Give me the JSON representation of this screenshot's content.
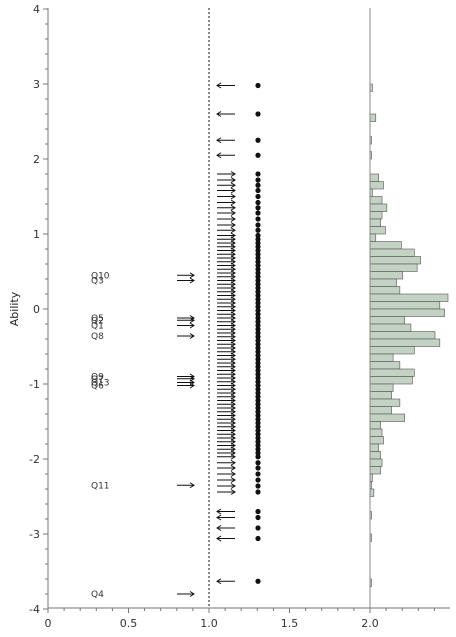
{
  "chart_data": {
    "type": "scatter",
    "title": "",
    "ylabel": "Ability",
    "xlabel": "",
    "ylim": [
      -4,
      4
    ],
    "xlim": [
      0,
      2.5
    ],
    "x_ticks": [
      "0",
      "0.5",
      "1.0",
      "1.5",
      "2.0"
    ],
    "y_ticks": [
      "4",
      "3",
      "2",
      "1",
      "0",
      "-1",
      "-2",
      "-3",
      "-4"
    ],
    "reference_lines": [
      {
        "x": 1.0,
        "style": "dotted"
      },
      {
        "x": 2.0,
        "style": "solid"
      }
    ],
    "items": [
      {
        "label": "Q10",
        "difficulty": 0.45
      },
      {
        "label": "Q3",
        "difficulty": 0.38
      },
      {
        "label": "Q5",
        "difficulty": -0.12
      },
      {
        "label": "Q2",
        "difficulty": -0.15
      },
      {
        "label": "Q1",
        "difficulty": -0.22
      },
      {
        "label": "Q8",
        "difficulty": -0.36
      },
      {
        "label": "Q9",
        "difficulty": -0.9
      },
      {
        "label": "Q7",
        "difficulty": -0.93
      },
      {
        "label": "Q13",
        "difficulty": -0.98
      },
      {
        "label": "Q6",
        "difficulty": -1.02
      },
      {
        "label": "Q11",
        "difficulty": -2.35
      },
      {
        "label": "Q4",
        "difficulty": -3.8
      }
    ],
    "person_abilities": [
      2.98,
      2.6,
      2.25,
      2.05,
      1.8,
      1.72,
      1.65,
      1.58,
      1.5,
      1.42,
      1.35,
      1.28,
      1.2,
      1.12,
      1.05,
      0.98,
      0.93,
      0.88,
      0.83,
      0.78,
      0.73,
      0.68,
      0.63,
      0.58,
      0.53,
      0.48,
      0.43,
      0.38,
      0.33,
      0.28,
      0.23,
      0.18,
      0.13,
      0.08,
      0.03,
      -0.02,
      -0.07,
      -0.12,
      -0.17,
      -0.22,
      -0.27,
      -0.32,
      -0.37,
      -0.42,
      -0.47,
      -0.52,
      -0.57,
      -0.62,
      -0.67,
      -0.72,
      -0.77,
      -0.82,
      -0.87,
      -0.92,
      -0.97,
      -1.02,
      -1.07,
      -1.12,
      -1.17,
      -1.22,
      -1.27,
      -1.32,
      -1.37,
      -1.42,
      -1.47,
      -1.52,
      -1.57,
      -1.62,
      -1.67,
      -1.72,
      -1.77,
      -1.82,
      -1.87,
      -1.92,
      -1.97,
      -2.05,
      -2.12,
      -2.2,
      -2.28,
      -2.36,
      -2.44,
      -2.7,
      -2.78,
      -2.92,
      -3.06,
      -3.63
    ],
    "ability_histogram": {
      "bin_width": 0.1,
      "bins": [
        {
          "y": 2.95,
          "count": 0.05
        },
        {
          "y": 2.55,
          "count": 0.12
        },
        {
          "y": 2.25,
          "count": 0.03
        },
        {
          "y": 2.05,
          "count": 0.02
        },
        {
          "y": 1.75,
          "count": 0.18
        },
        {
          "y": 1.65,
          "count": 0.28
        },
        {
          "y": 1.55,
          "count": 0.05
        },
        {
          "y": 1.45,
          "count": 0.25
        },
        {
          "y": 1.35,
          "count": 0.35
        },
        {
          "y": 1.25,
          "count": 0.25
        },
        {
          "y": 1.15,
          "count": 0.22
        },
        {
          "y": 1.05,
          "count": 0.32
        },
        {
          "y": 0.95,
          "count": 0.12
        },
        {
          "y": 0.85,
          "count": 0.65
        },
        {
          "y": 0.75,
          "count": 0.92
        },
        {
          "y": 0.65,
          "count": 1.05
        },
        {
          "y": 0.55,
          "count": 0.98
        },
        {
          "y": 0.45,
          "count": 0.68
        },
        {
          "y": 0.35,
          "count": 0.55
        },
        {
          "y": 0.25,
          "count": 0.62
        },
        {
          "y": 0.15,
          "count": 1.62
        },
        {
          "y": 0.05,
          "count": 1.45
        },
        {
          "y": -0.05,
          "count": 1.55
        },
        {
          "y": -0.15,
          "count": 0.72
        },
        {
          "y": -0.25,
          "count": 0.85
        },
        {
          "y": -0.35,
          "count": 1.35
        },
        {
          "y": -0.45,
          "count": 1.45
        },
        {
          "y": -0.55,
          "count": 0.92
        },
        {
          "y": -0.65,
          "count": 0.48
        },
        {
          "y": -0.75,
          "count": 0.62
        },
        {
          "y": -0.85,
          "count": 0.92
        },
        {
          "y": -0.95,
          "count": 0.88
        },
        {
          "y": -1.05,
          "count": 0.48
        },
        {
          "y": -1.15,
          "count": 0.45
        },
        {
          "y": -1.25,
          "count": 0.62
        },
        {
          "y": -1.35,
          "count": 0.45
        },
        {
          "y": -1.45,
          "count": 0.72
        },
        {
          "y": -1.55,
          "count": 0.22
        },
        {
          "y": -1.65,
          "count": 0.25
        },
        {
          "y": -1.75,
          "count": 0.28
        },
        {
          "y": -1.85,
          "count": 0.18
        },
        {
          "y": -1.95,
          "count": 0.22
        },
        {
          "y": -2.05,
          "count": 0.25
        },
        {
          "y": -2.15,
          "count": 0.22
        },
        {
          "y": -2.25,
          "count": 0.05
        },
        {
          "y": -2.35,
          "count": 0.03
        },
        {
          "y": -2.45,
          "count": 0.08
        },
        {
          "y": -2.75,
          "count": 0.02
        },
        {
          "y": -3.05,
          "count": 0.03
        },
        {
          "y": -3.65,
          "count": 0.03
        }
      ]
    },
    "grid": false,
    "legend": "none"
  },
  "colors": {
    "histogram_fill": "#c3d2c3",
    "histogram_stroke": "#555555",
    "mark": "#111111",
    "axis": "#777777"
  }
}
